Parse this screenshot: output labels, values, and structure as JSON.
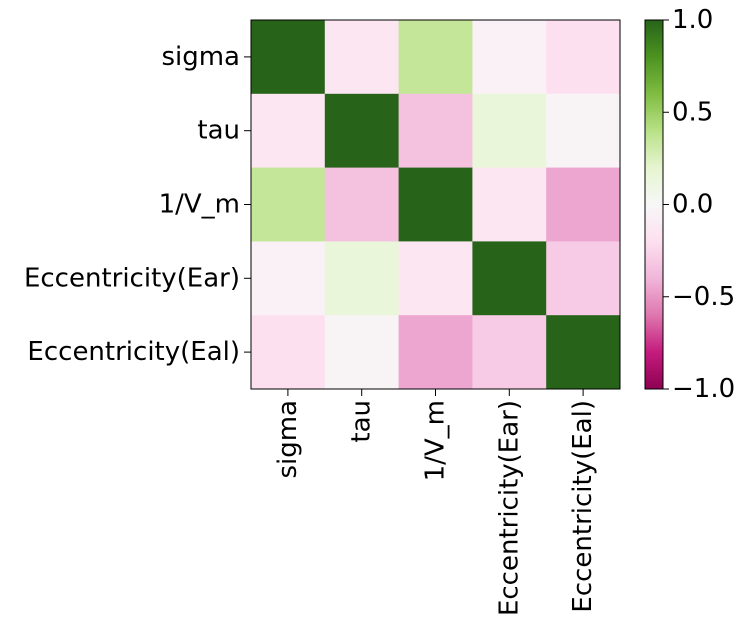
{
  "chart_data": {
    "type": "heatmap",
    "title": "",
    "xlabel": "",
    "ylabel": "",
    "row_labels": [
      "sigma",
      "tau",
      "1/V_m",
      "Eccentricity(Ear)",
      "Eccentricity(Eal)"
    ],
    "col_labels": [
      "sigma",
      "tau",
      "1/V_m",
      "Eccentricity(Ear)",
      "Eccentricity(Eal)"
    ],
    "values": [
      [
        1.0,
        -0.15,
        0.35,
        -0.05,
        -0.2
      ],
      [
        -0.15,
        1.0,
        -0.35,
        0.15,
        -0.03
      ],
      [
        0.35,
        -0.35,
        1.0,
        -0.15,
        -0.45
      ],
      [
        -0.05,
        0.15,
        -0.15,
        1.0,
        -0.3
      ],
      [
        -0.2,
        -0.03,
        -0.45,
        -0.3,
        1.0
      ]
    ],
    "vmin": -1.0,
    "vmax": 1.0,
    "colormap": "PiYG",
    "colorbar_ticks": [
      "1.0",
      "0.5",
      "0.0",
      "−0.5",
      "−1.0"
    ],
    "colorbar_tick_values": [
      1.0,
      0.5,
      0.0,
      -0.5,
      -1.0
    ]
  }
}
